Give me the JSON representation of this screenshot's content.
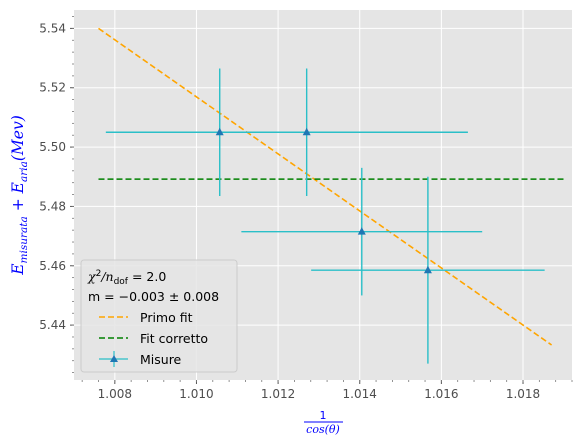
{
  "chart_data": {
    "type": "scatter",
    "xlabel_num": "1",
    "xlabel_den": "cos(θ)",
    "ylabel": {
      "base1": "E",
      "sub1": "misurata",
      "plus": " + ",
      "base2": "E",
      "sub2": "aria",
      "tail": "(Mev)"
    },
    "xlim": [
      1.007,
      1.0192
    ],
    "ylim": [
      5.4215,
      5.5462
    ],
    "xticks": [
      1.008,
      1.01,
      1.012,
      1.014,
      1.016,
      1.018
    ],
    "xtick_labels": [
      "1.008",
      "1.010",
      "1.012",
      "1.014",
      "1.016",
      "1.018"
    ],
    "yticks": [
      5.44,
      5.46,
      5.48,
      5.5,
      5.52,
      5.54
    ],
    "ytick_labels": [
      "5.44",
      "5.46",
      "5.48",
      "5.50",
      "5.52",
      "5.54"
    ],
    "grid": true,
    "legend_position": "lower-left",
    "series": [
      {
        "name": "Primo fit",
        "kind": "line",
        "color": "#FFA500",
        "dash": true,
        "x": [
          1.0076,
          1.0187
        ],
        "y": [
          5.54,
          5.4333
        ]
      },
      {
        "name": "Fit corretto",
        "kind": "line",
        "color": "#008000",
        "dash": true,
        "x": [
          1.0076,
          1.019
        ],
        "y": [
          5.4892,
          5.4892
        ]
      },
      {
        "name": "Misure",
        "kind": "errorbar",
        "marker_color": "#1f77b4",
        "errbar_color": "#2ABFC8",
        "points": [
          {
            "x": 1.01057,
            "y": 5.505,
            "xerr": 0.00279,
            "yerr": 0.0215
          },
          {
            "x": 1.0127,
            "y": 5.505,
            "xerr": 0.00395,
            "yerr": 0.0215
          },
          {
            "x": 1.01405,
            "y": 5.4715,
            "xerr": 0.00295,
            "yerr": 0.0215
          },
          {
            "x": 1.01567,
            "y": 5.4585,
            "xerr": 0.00286,
            "yerr": 0.0315
          }
        ]
      }
    ],
    "legend": {
      "stat_line1_sym": "χ",
      "stat_line1_sup": "2",
      "stat_line1_slash": "/n",
      "stat_line1_sub": "dof",
      "stat_line1_value": " = 2.0",
      "stat_line2": "m = −0.003 ± 0.008",
      "entries": [
        "Primo fit",
        "Fit corretto",
        "Misure"
      ]
    },
    "colors": {
      "axes_bg": "#E5E5E5",
      "grid": "#FFFFFF",
      "label": "#0000FF"
    }
  }
}
